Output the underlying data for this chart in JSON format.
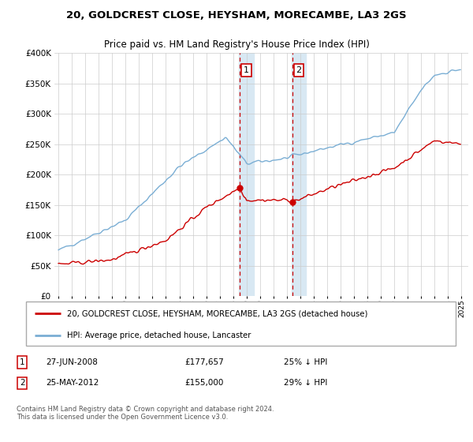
{
  "title": "20, GOLDCREST CLOSE, HEYSHAM, MORECAMBE, LA3 2GS",
  "subtitle": "Price paid vs. HM Land Registry's House Price Index (HPI)",
  "legend_label_red": "20, GOLDCREST CLOSE, HEYSHAM, MORECAMBE, LA3 2GS (detached house)",
  "legend_label_blue": "HPI: Average price, detached house, Lancaster",
  "footer": "Contains HM Land Registry data © Crown copyright and database right 2024.\nThis data is licensed under the Open Government Licence v3.0.",
  "transaction1": {
    "label": "1",
    "date": "27-JUN-2008",
    "price": "£177,657",
    "hpi": "25% ↓ HPI"
  },
  "transaction2": {
    "label": "2",
    "date": "25-MAY-2012",
    "price": "£155,000",
    "hpi": "29% ↓ HPI"
  },
  "sale1_year": 2008.49,
  "sale1_price": 177657,
  "sale2_year": 2012.39,
  "sale2_price": 155000,
  "hpi_color": "#7aaed4",
  "price_color": "#cc0000",
  "shaded_color": "#d8e8f3",
  "background": "#ffffff",
  "grid_color": "#cccccc",
  "ylim_max": 400000,
  "yticks": [
    0,
    50000,
    100000,
    150000,
    200000,
    250000,
    300000,
    350000,
    400000
  ],
  "xlim_start": 1994.7,
  "xlim_end": 2025.5
}
